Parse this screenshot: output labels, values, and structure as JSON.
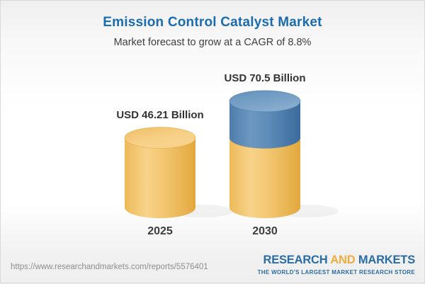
{
  "chart_data": {
    "type": "bar",
    "chart_style": "3d-cylinder",
    "title": "Emission Control Catalyst Market",
    "subtitle": "Market forecast to grow at a CAGR of 8.8%",
    "cagr_percent": 8.8,
    "unit": "USD Billion",
    "categories": [
      "2025",
      "2030"
    ],
    "values": [
      46.21,
      70.5
    ],
    "value_labels": [
      "USD 46.21 Billion",
      "USD 70.5 Billion"
    ],
    "legend_note": "2030 cylinder shows 2025 base value in gold with growth increment in blue",
    "colors": {
      "base_segment_gold": "#F2C473",
      "growth_segment_blue": "#5E8CB8",
      "title_blue": "#1B6CAE"
    }
  },
  "footer": {
    "url": "https://www.researchandmarkets.com/reports/5576401",
    "logo": {
      "word1": "RESEARCH",
      "word2": "AND",
      "word3": "MARKETS",
      "tagline": "THE WORLD'S LARGEST MARKET RESEARCH STORE",
      "blue": "#2A6CA4",
      "orange": "#F0AD3B"
    }
  }
}
